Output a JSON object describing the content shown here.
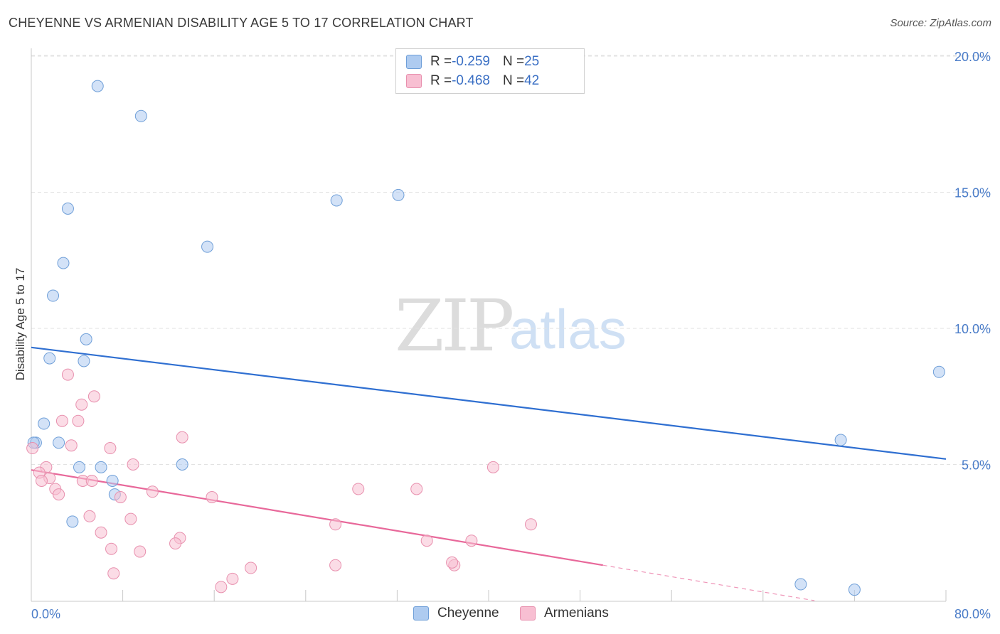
{
  "header": {
    "title": "CHEYENNE VS ARMENIAN DISABILITY AGE 5 TO 17 CORRELATION CHART",
    "source": "Source: ZipAtlas.com"
  },
  "watermark": {
    "zip": "ZIP",
    "atlas": "atlas"
  },
  "legend": {
    "rows": [
      {
        "r_label": "R = ",
        "r_value": "-0.259",
        "n_label": "N = ",
        "n_value": "25",
        "color": "#aecbf0"
      },
      {
        "r_label": "R = ",
        "r_value": "-0.468",
        "n_label": "N = ",
        "n_value": "42",
        "color": "#f8bfd2"
      }
    ]
  },
  "bottom_legend": [
    {
      "label": "Cheyenne",
      "color": "#aecbf0"
    },
    {
      "label": "Armenians",
      "color": "#f8bfd2"
    }
  ],
  "chart_data": {
    "type": "scatter",
    "title": "CHEYENNE VS ARMENIAN DISABILITY AGE 5 TO 17 CORRELATION CHART",
    "xlabel": "",
    "ylabel": "Disability Age 5 to 17",
    "xlim": [
      0,
      80
    ],
    "ylim": [
      0,
      20
    ],
    "x_tick_labels": [
      "0.0%",
      "80.0%"
    ],
    "y_ticks": [
      5,
      10,
      15,
      20
    ],
    "y_tick_labels": [
      "5.0%",
      "10.0%",
      "15.0%",
      "20.0%"
    ],
    "series": [
      {
        "name": "Cheyenne",
        "color": "#aecbf0",
        "stroke": "#6f9fd8",
        "line_color": "#2f6fd1",
        "trend": {
          "x0": 0,
          "y0": 9.3,
          "x1": 80,
          "y1": 5.2
        },
        "points": [
          [
            5.8,
            18.9
          ],
          [
            9.6,
            17.8
          ],
          [
            3.2,
            14.4
          ],
          [
            26.7,
            14.7
          ],
          [
            32.1,
            14.9
          ],
          [
            15.4,
            13.0
          ],
          [
            2.8,
            12.4
          ],
          [
            1.9,
            11.2
          ],
          [
            4.8,
            9.6
          ],
          [
            1.6,
            8.9
          ],
          [
            4.6,
            8.8
          ],
          [
            79.4,
            8.4
          ],
          [
            1.1,
            6.5
          ],
          [
            0.4,
            5.8
          ],
          [
            2.4,
            5.8
          ],
          [
            70.8,
            5.9
          ],
          [
            4.2,
            4.9
          ],
          [
            6.1,
            4.9
          ],
          [
            13.2,
            5.0
          ],
          [
            7.1,
            4.4
          ],
          [
            7.3,
            3.9
          ],
          [
            3.6,
            2.9
          ],
          [
            67.3,
            0.6
          ],
          [
            72.0,
            0.4
          ],
          [
            0.2,
            5.8
          ]
        ]
      },
      {
        "name": "Armenians",
        "color": "#f8bfd2",
        "stroke": "#e890ae",
        "line_color": "#e8689a",
        "trend": {
          "x0": 0,
          "y0": 4.8,
          "x1": 50,
          "y1": 1.3
        },
        "trend_extension": {
          "x0": 50,
          "y0": 1.3,
          "x1": 68.5,
          "y1": 0.0
        },
        "points": [
          [
            0.1,
            5.6
          ],
          [
            3.2,
            8.3
          ],
          [
            5.5,
            7.5
          ],
          [
            4.4,
            7.2
          ],
          [
            2.7,
            6.6
          ],
          [
            4.1,
            6.6
          ],
          [
            13.2,
            6.0
          ],
          [
            3.5,
            5.7
          ],
          [
            6.9,
            5.6
          ],
          [
            1.3,
            4.9
          ],
          [
            0.7,
            4.7
          ],
          [
            8.9,
            5.0
          ],
          [
            40.4,
            4.9
          ],
          [
            1.6,
            4.5
          ],
          [
            0.9,
            4.4
          ],
          [
            4.5,
            4.4
          ],
          [
            5.3,
            4.4
          ],
          [
            2.1,
            4.1
          ],
          [
            2.4,
            3.9
          ],
          [
            7.8,
            3.8
          ],
          [
            10.6,
            4.0
          ],
          [
            28.6,
            4.1
          ],
          [
            33.7,
            4.1
          ],
          [
            15.8,
            3.8
          ],
          [
            5.1,
            3.1
          ],
          [
            8.7,
            3.0
          ],
          [
            26.6,
            2.8
          ],
          [
            43.7,
            2.8
          ],
          [
            6.1,
            2.5
          ],
          [
            13.0,
            2.3
          ],
          [
            12.6,
            2.1
          ],
          [
            34.6,
            2.2
          ],
          [
            38.5,
            2.2
          ],
          [
            7.0,
            1.9
          ],
          [
            9.5,
            1.8
          ],
          [
            26.6,
            1.3
          ],
          [
            37.0,
            1.3
          ],
          [
            36.8,
            1.4
          ],
          [
            19.2,
            1.2
          ],
          [
            7.2,
            1.0
          ],
          [
            17.6,
            0.8
          ],
          [
            16.6,
            0.5
          ]
        ]
      }
    ]
  }
}
